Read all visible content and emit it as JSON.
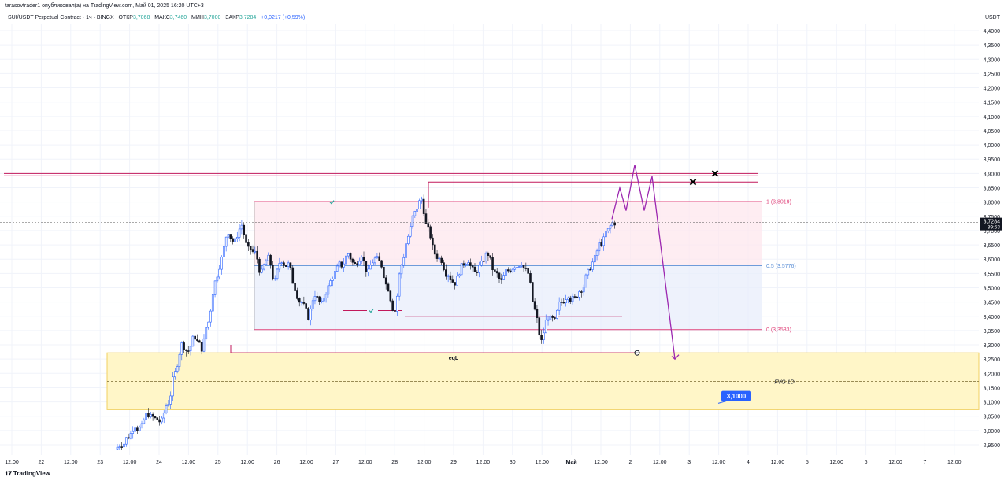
{
  "header": {
    "published_line": "tarasovtrader1 опубликовал(а) на TradingView.com, Май 01, 2025 16:20 UTC+3",
    "symbol": "SUI/USDT Perpetual Contract · 1ч · BINGX",
    "open_label": "ОТКР",
    "open_value": "3,7068",
    "high_label": "МАКС",
    "high_value": "3,7460",
    "low_label": "МИН",
    "low_value": "3,7000",
    "close_label": "ЗАКР",
    "close_value": "3,7284",
    "change": "+0,0217 (+0,59%)",
    "currency": "USDT"
  },
  "footer": {
    "brand": "TradingView"
  },
  "price_axis": {
    "labels": [
      "4,4000",
      "4,3500",
      "4,3000",
      "4,2500",
      "4,2000",
      "4,1500",
      "4,1000",
      "4,0500",
      "4,0000",
      "3,9500",
      "3,9000",
      "3,8500",
      "3,8000",
      "3,7500",
      "3,7000",
      "3,6500",
      "3,6000",
      "3,5500",
      "3,5000",
      "3,4500",
      "3,4000",
      "3,3500",
      "3,3000",
      "3,2500",
      "3,2000",
      "3,1500",
      "3,1000",
      "3,0500",
      "3,0000",
      "2,9500"
    ],
    "current_price": "3,7284",
    "countdown": "39:53"
  },
  "time_axis": {
    "labels": [
      "12:00",
      "22",
      "12:00",
      "23",
      "12:00",
      "24",
      "12:00",
      "25",
      "12:00",
      "26",
      "12:00",
      "27",
      "12:00",
      "28",
      "12:00",
      "29",
      "12:00",
      "30",
      "12:00",
      "Май",
      "12:00",
      "2",
      "12:00",
      "3",
      "12:00",
      "4",
      "12:00",
      "5",
      "12:00",
      "6",
      "12:00",
      "7",
      "12:00"
    ]
  },
  "annotations": {
    "fib_1": "1 (3,8019)",
    "fib_05": "0,5 (3,5776)",
    "fib_0": "0 (3,3533)",
    "eql": "eqL",
    "fvg": "FVG 1D",
    "target_badge": "3,1000"
  },
  "colors": {
    "up_candle": "#2962ff",
    "down_candle": "#131722",
    "magenta_line": "#c2185b",
    "purple_projection": "#9c27b0",
    "fib_line_blue": "#5b8fd6",
    "fvg_fill": "#fff6c8",
    "fvg_border": "#f0d060",
    "badge": "#2962ff"
  },
  "chart_data": {
    "type": "candlestick",
    "series": [
      {
        "name": "SUI/USDT",
        "note_scale": "1h candles, values read approximately from the price axis",
        "close_path": [
          2.955,
          2.98,
          3.02,
          3.01,
          3.06,
          3.04,
          3.03,
          3.1,
          3.2,
          3.3,
          3.28,
          3.33,
          3.29,
          3.38,
          3.52,
          3.6,
          3.7,
          3.66,
          3.72,
          3.63,
          3.62,
          3.55,
          3.6,
          3.52,
          3.6,
          3.58,
          3.5,
          3.45,
          3.4,
          3.48,
          3.44,
          3.5,
          3.55,
          3.58,
          3.62,
          3.58,
          3.62,
          3.55,
          3.6,
          3.58,
          3.5,
          3.42,
          3.58,
          3.68,
          3.76,
          3.81,
          3.7,
          3.62,
          3.6,
          3.55,
          3.52,
          3.57,
          3.6,
          3.55,
          3.58,
          3.62,
          3.55,
          3.52,
          3.56,
          3.58,
          3.59,
          3.55,
          3.42,
          3.31,
          3.4,
          3.38,
          3.45,
          3.48,
          3.46,
          3.5,
          3.55,
          3.6,
          3.66,
          3.7,
          3.73
        ]
      }
    ],
    "ylim": [
      2.93,
      4.43
    ],
    "levels": {
      "upper_magenta": 3.9,
      "liquidity_high": 3.87,
      "fib_1": 3.8019,
      "fib_05": 3.5776,
      "fib_0": 3.3533,
      "range_low": 3.4,
      "eql": 3.272,
      "fvg_top": 3.272,
      "fvg_mid": 3.172,
      "fvg_bottom": 3.073,
      "target": 3.1
    },
    "projection_path": [
      3.74,
      3.85,
      3.77,
      3.93,
      3.77,
      3.89,
      3.25
    ]
  }
}
